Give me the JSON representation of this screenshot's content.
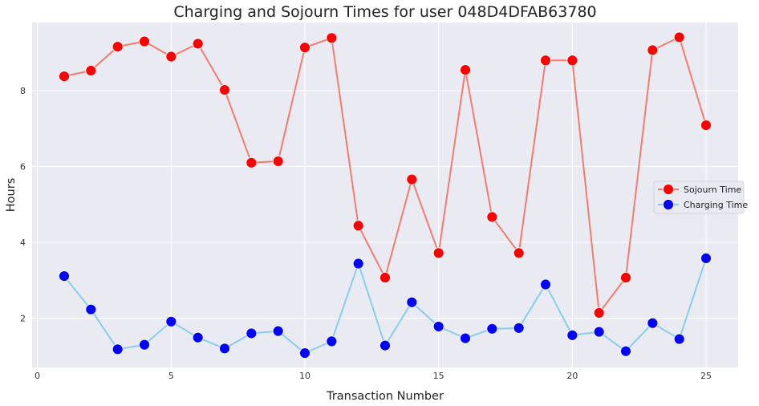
{
  "chart_data": {
    "type": "line",
    "title": "Charging and Sojourn Times for user 048D4DFAB63780",
    "xlabel": "Transaction Number",
    "ylabel": "Hours",
    "xlim": [
      -0.2,
      26.2
    ],
    "ylim": [
      0.7,
      9.8
    ],
    "xticks": [
      0,
      5,
      10,
      15,
      20,
      25
    ],
    "yticks": [
      2,
      4,
      6,
      8
    ],
    "grid": true,
    "legend_position": "center-right",
    "x": [
      1,
      2,
      3,
      4,
      5,
      6,
      7,
      8,
      9,
      10,
      11,
      12,
      13,
      14,
      15,
      16,
      17,
      18,
      19,
      20,
      21,
      22,
      23,
      24,
      25
    ],
    "series": [
      {
        "name": "Sojourn Time",
        "line_color": "#f47c6e",
        "marker_color": "#ff0000",
        "values": [
          8.38,
          8.53,
          9.16,
          9.3,
          8.9,
          9.24,
          8.02,
          6.1,
          6.14,
          9.14,
          9.39,
          4.44,
          3.07,
          5.66,
          3.72,
          8.55,
          4.67,
          3.72,
          8.8,
          8.8,
          2.14,
          3.07,
          9.07,
          9.41,
          7.09
        ]
      },
      {
        "name": "Charging Time",
        "line_color": "#87ceeb",
        "marker_color": "#0000ff",
        "values": [
          3.11,
          2.23,
          1.18,
          1.3,
          1.91,
          1.49,
          1.2,
          1.6,
          1.66,
          1.08,
          1.39,
          3.44,
          1.28,
          2.42,
          1.78,
          1.47,
          1.72,
          1.74,
          2.89,
          1.55,
          1.64,
          1.13,
          1.87,
          1.45,
          3.58
        ]
      }
    ]
  }
}
